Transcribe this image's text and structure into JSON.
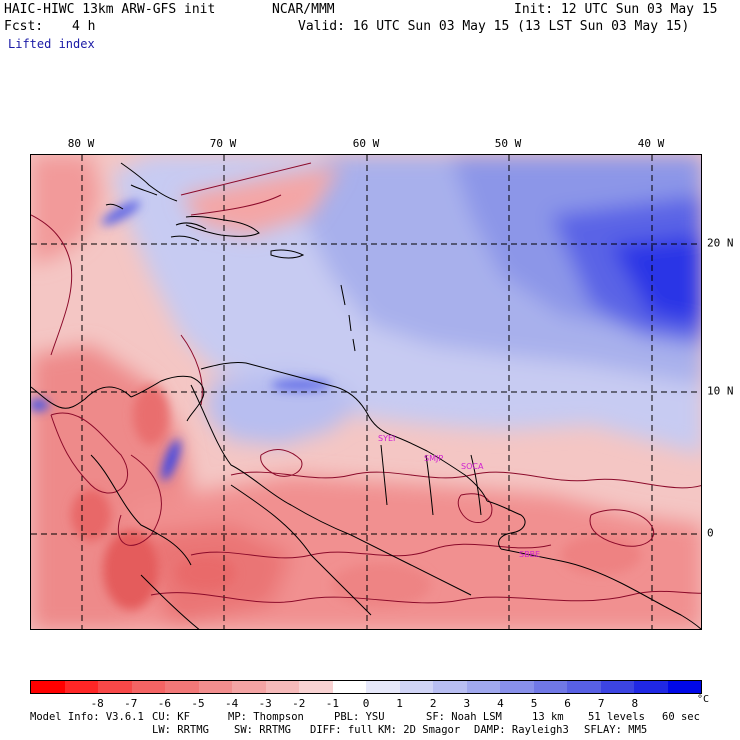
{
  "header": {
    "model_title": "HAIC-HIWC 13km ARW-GFS init",
    "org": "NCAR/MMM",
    "init": "Init: 12 UTC Sun 03 May 15",
    "fcst_label": "Fcst:",
    "fcst_value": "4 h",
    "valid": "Valid: 16 UTC Sun 03 May 15 (13 LST Sun 03 May 15)",
    "field": "Lifted index"
  },
  "map": {
    "lon_labels": [
      "80 W",
      "70 W",
      "60 W",
      "50 W",
      "40 W"
    ],
    "lat_labels": [
      "20 N",
      "10 N",
      "0"
    ],
    "stations": [
      "SYEI",
      "SMJP",
      "SOCA",
      "SBBE"
    ],
    "colors": {
      "positive_dark": "#0000e0",
      "positive_light": "#c9cdf4",
      "negative_dark": "#e01010",
      "negative_light": "#f6c6c4",
      "contour": "#8b0a2a",
      "coast": "#000000",
      "station": "#d020d0"
    }
  },
  "colorbar": {
    "colors": [
      "#ff0000",
      "#ff2626",
      "#f84848",
      "#f46464",
      "#f27878",
      "#f28e8e",
      "#f4a4a4",
      "#f6baba",
      "#f8d2d2",
      "#ffffff",
      "#e6e8fa",
      "#d0d4f6",
      "#b8bef2",
      "#a0a8ee",
      "#8890ea",
      "#7078e6",
      "#5860e4",
      "#3c44e2",
      "#2028e4",
      "#0008e8"
    ],
    "labels": [
      "-8",
      "-7",
      "-6",
      "-5",
      "-4",
      "-3",
      "-2",
      "-1",
      "0",
      "1",
      "2",
      "3",
      "4",
      "5",
      "6",
      "7",
      "8"
    ],
    "unit": "°C"
  },
  "model_info": {
    "line1": [
      "Model Info: V3.6.1",
      "CU: KF",
      "MP: Thompson",
      "PBL: YSU",
      "SF: Noah LSM",
      "13 km",
      "51 levels",
      "60 sec"
    ],
    "line2": [
      "LW: RRTMG",
      "SW: RRTMG",
      "DIFF: full",
      "KM: 2D Smagor",
      "DAMP: Rayleigh3",
      "SFLAY: MM5"
    ]
  }
}
